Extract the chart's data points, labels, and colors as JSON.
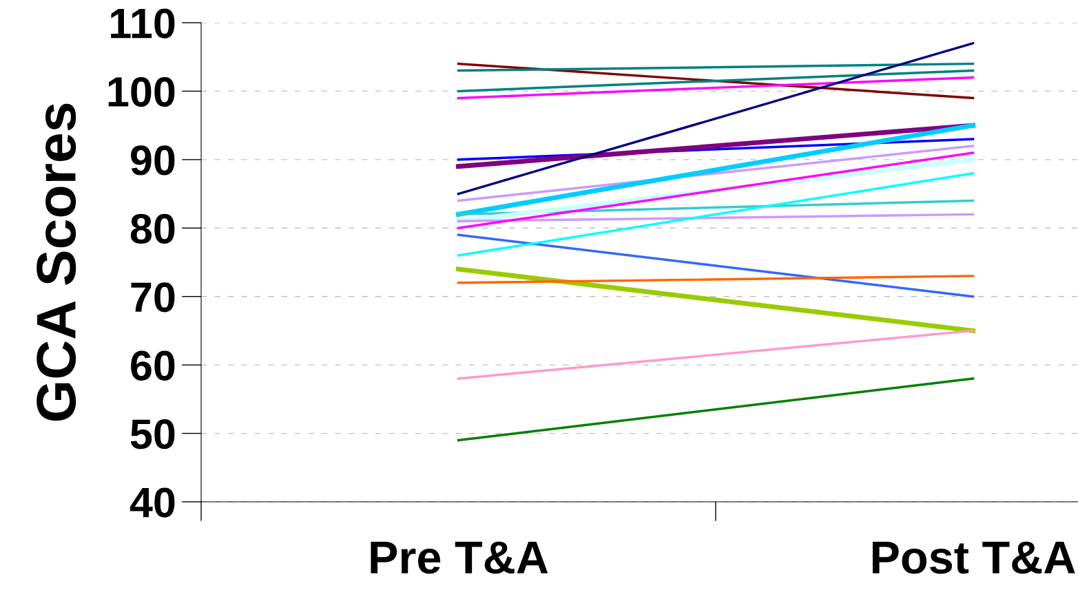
{
  "chart_data": {
    "type": "line",
    "ylabel": "GCA Scores",
    "categories": [
      "Pre T&A",
      "Post T&A"
    ],
    "ylim": [
      40,
      110
    ],
    "yticks": [
      40,
      50,
      60,
      70,
      80,
      90,
      100,
      110
    ],
    "grid": "y",
    "marker": "none",
    "line_style": "solid",
    "series": [
      {
        "color": "#800000",
        "values": [
          104,
          99
        ]
      },
      {
        "color": "#008080",
        "values": [
          103,
          104
        ]
      },
      {
        "color": "#008080",
        "values": [
          100,
          103
        ]
      },
      {
        "color": "#ff00ff",
        "values": [
          99,
          102
        ]
      },
      {
        "color": "#0000ff",
        "values": [
          90,
          93
        ]
      },
      {
        "color": "#800080",
        "values": [
          89,
          95
        ]
      },
      {
        "color": "#000080",
        "values": [
          85,
          107
        ]
      },
      {
        "color": "#cc99ff",
        "values": [
          84,
          92
        ]
      },
      {
        "color": "#00ccff",
        "values": [
          82,
          95
        ]
      },
      {
        "color": "#33cccc",
        "values": [
          82,
          84
        ]
      },
      {
        "color": "#ccffff",
        "values": [
          81,
          90
        ]
      },
      {
        "color": "#cc99ff",
        "values": [
          81,
          82
        ]
      },
      {
        "color": "#ff00ff",
        "values": [
          80,
          91
        ]
      },
      {
        "color": "#3366ff",
        "values": [
          79,
          70
        ]
      },
      {
        "color": "#00ffff",
        "values": [
          76,
          88
        ]
      },
      {
        "color": "#99cc00",
        "values": [
          74,
          65
        ]
      },
      {
        "color": "#ff6600",
        "values": [
          72,
          73
        ]
      },
      {
        "color": "#ff99cc",
        "values": [
          58,
          65
        ]
      },
      {
        "color": "#008000",
        "values": [
          49,
          58
        ]
      }
    ]
  }
}
